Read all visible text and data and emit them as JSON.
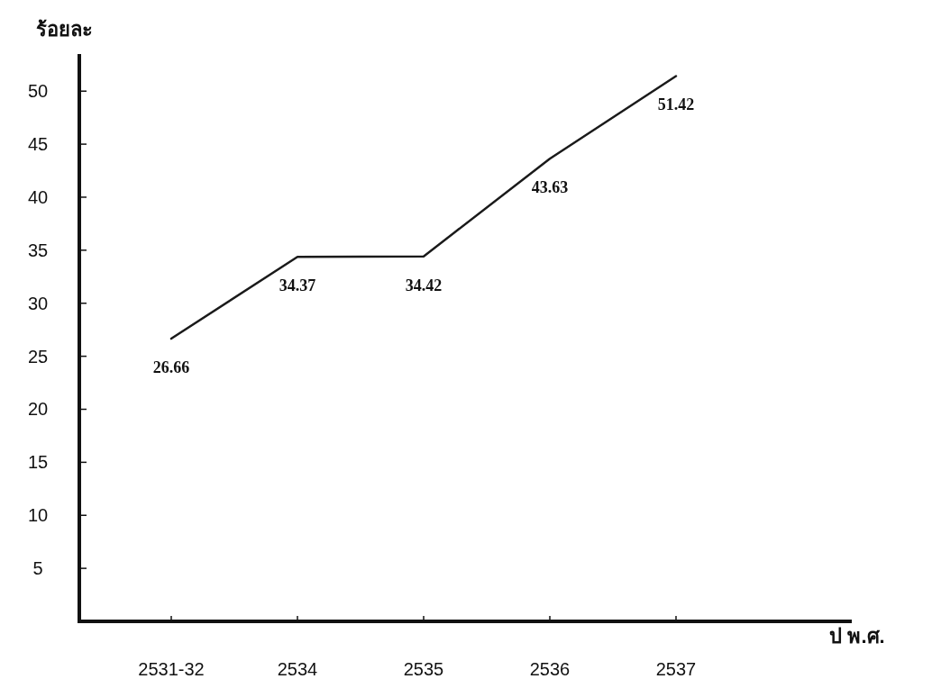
{
  "chart_data": {
    "type": "line",
    "ylabel": "ร้อยละ",
    "xlabel": "ป พ.ศ.",
    "categories": [
      "2531-32",
      "2534",
      "2535",
      "2536",
      "2537"
    ],
    "series": [
      {
        "color": "#1a1a1a",
        "values": [
          26.66,
          34.37,
          34.42,
          43.63,
          51.42
        ]
      }
    ],
    "ylim": [
      0,
      53.5
    ],
    "yticks": [
      5,
      10,
      15,
      20,
      25,
      30,
      35,
      40,
      45,
      50
    ],
    "data_labels": true,
    "grid": false,
    "marker": "none",
    "line_style": "solid"
  }
}
